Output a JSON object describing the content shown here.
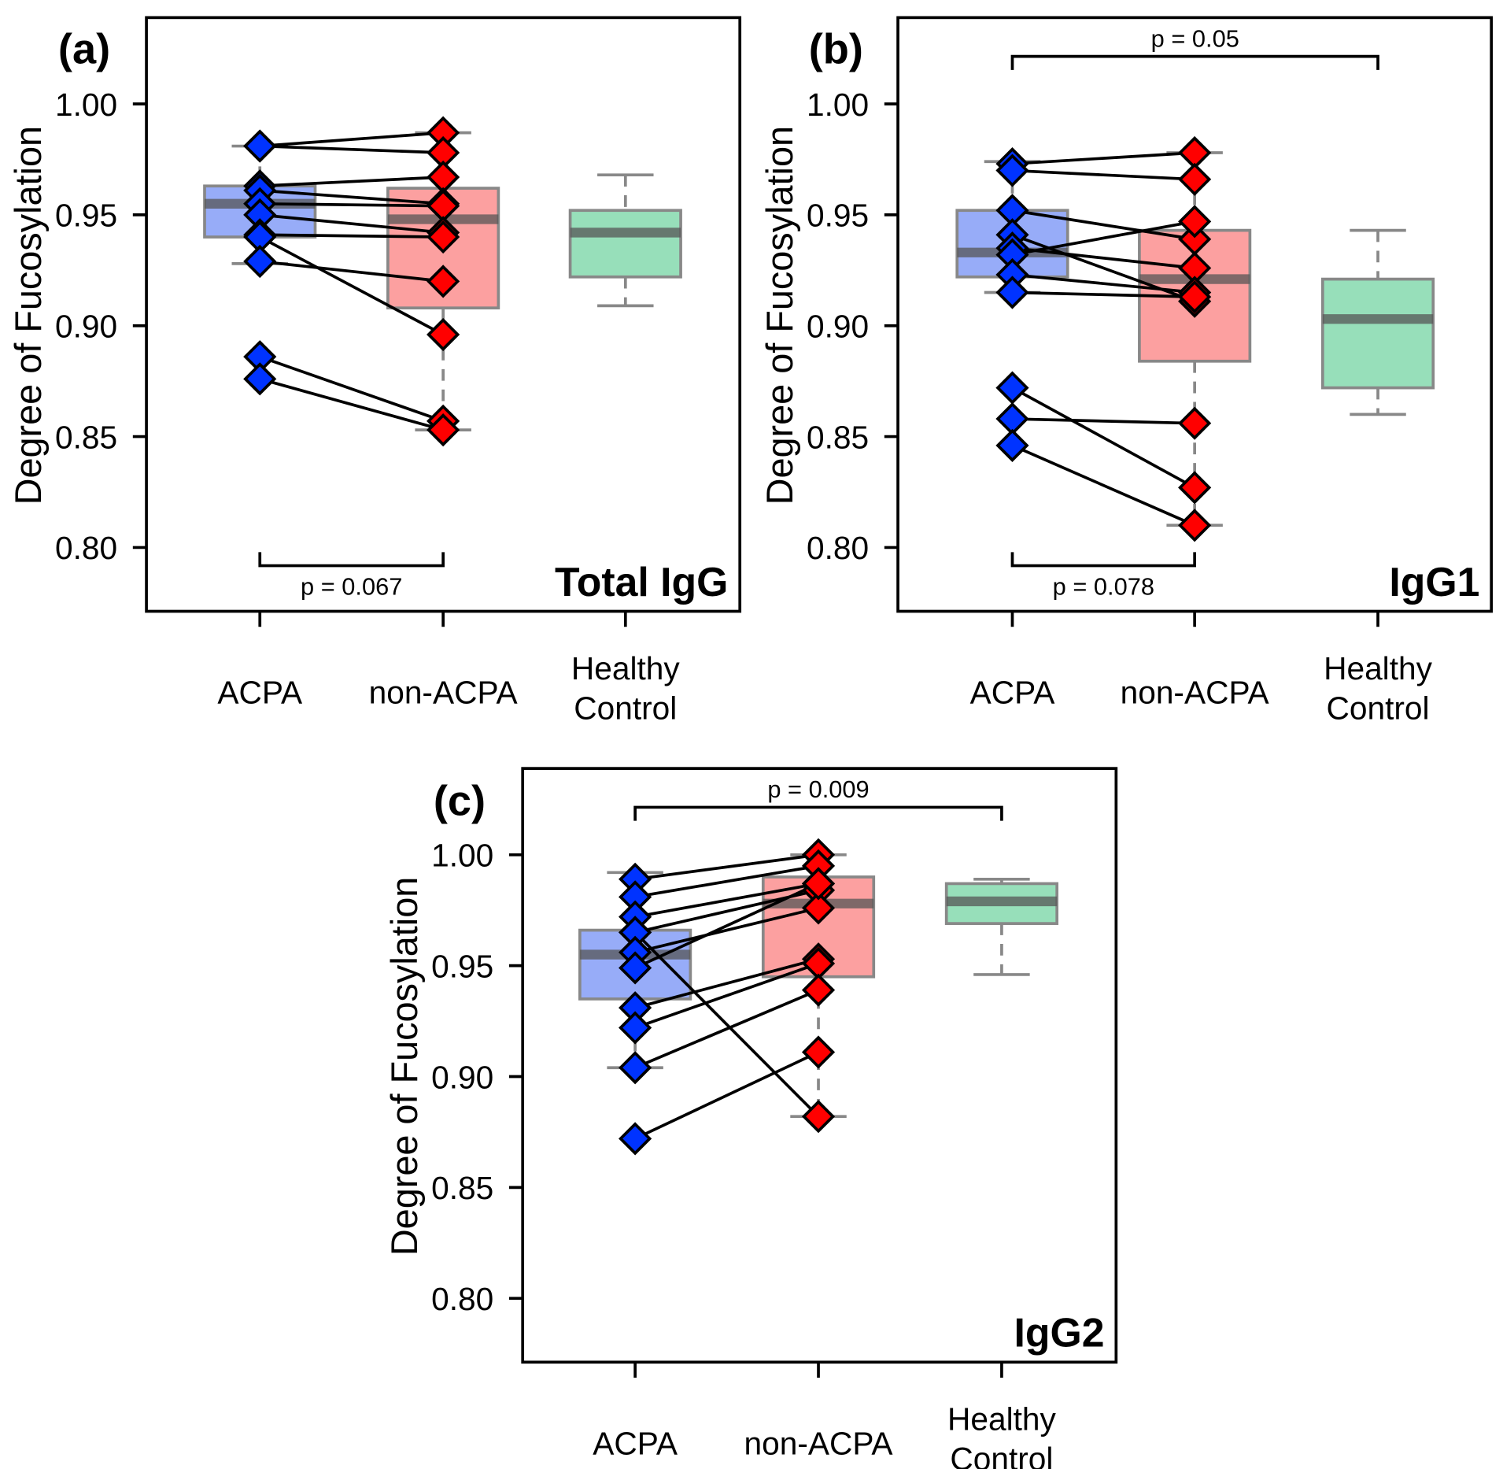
{
  "chart_data": [
    {
      "type": "box-paired",
      "panel_label": "(a)",
      "title": "Total IgG",
      "ylabel": "Degree of Fucosylation",
      "ylim": [
        0.775,
        1.04
      ],
      "yticks": [
        "0.80",
        "0.85",
        "0.90",
        "0.95",
        "1.00"
      ],
      "categories": [
        "ACPA",
        "non-ACPA",
        "Healthy\nControl"
      ],
      "boxes": [
        {
          "name": "ACPA",
          "q1": 0.94,
          "median": 0.955,
          "q3": 0.963,
          "whisker_low": 0.928,
          "whisker_high": 0.981,
          "color": "#6f8cf5"
        },
        {
          "name": "non-ACPA",
          "q1": 0.908,
          "median": 0.948,
          "q3": 0.962,
          "whisker_low": 0.853,
          "whisker_high": 0.987,
          "color": "#fb7b7b"
        },
        {
          "name": "Healthy Control",
          "q1": 0.922,
          "median": 0.942,
          "q3": 0.952,
          "whisker_low": 0.909,
          "whisker_high": 0.968,
          "color": "#6fd3a0"
        }
      ],
      "pairs": [
        [
          0.981,
          0.987
        ],
        [
          0.981,
          0.978
        ],
        [
          0.963,
          0.967
        ],
        [
          0.961,
          0.955
        ],
        [
          0.955,
          0.954
        ],
        [
          0.95,
          0.942
        ],
        [
          0.941,
          0.94
        ],
        [
          0.94,
          0.896
        ],
        [
          0.929,
          0.92
        ],
        [
          0.886,
          0.857
        ],
        [
          0.876,
          0.853
        ]
      ],
      "brackets": [
        {
          "from": 0,
          "to": 1,
          "position": "bottom",
          "label": "p = 0.067"
        }
      ]
    },
    {
      "type": "box-paired",
      "panel_label": "(b)",
      "title": "IgG1",
      "ylabel": "Degree of Fucosylation",
      "ylim": [
        0.775,
        1.04
      ],
      "yticks": [
        "0.80",
        "0.85",
        "0.90",
        "0.95",
        "1.00"
      ],
      "categories": [
        "ACPA",
        "non-ACPA",
        "Healthy\nControl"
      ],
      "boxes": [
        {
          "name": "ACPA",
          "q1": 0.922,
          "median": 0.933,
          "q3": 0.952,
          "whisker_low": 0.915,
          "whisker_high": 0.974,
          "color": "#6f8cf5"
        },
        {
          "name": "non-ACPA",
          "q1": 0.884,
          "median": 0.921,
          "q3": 0.943,
          "whisker_low": 0.81,
          "whisker_high": 0.978,
          "color": "#fb7b7b"
        },
        {
          "name": "Healthy Control",
          "q1": 0.872,
          "median": 0.903,
          "q3": 0.921,
          "whisker_low": 0.86,
          "whisker_high": 0.943,
          "color": "#6fd3a0"
        }
      ],
      "pairs": [
        [
          0.973,
          0.978
        ],
        [
          0.97,
          0.966
        ],
        [
          0.952,
          0.939
        ],
        [
          0.941,
          0.911
        ],
        [
          0.935,
          0.926
        ],
        [
          0.932,
          0.947
        ],
        [
          0.923,
          0.915
        ],
        [
          0.915,
          0.913
        ],
        [
          0.872,
          0.827
        ],
        [
          0.858,
          0.856
        ],
        [
          0.846,
          0.81
        ]
      ],
      "brackets": [
        {
          "from": 0,
          "to": 2,
          "position": "top",
          "label": "p = 0.05"
        },
        {
          "from": 0,
          "to": 1,
          "position": "bottom",
          "label": "p = 0.078"
        }
      ]
    },
    {
      "type": "box-paired",
      "panel_label": "(c)",
      "title": "IgG2",
      "ylabel": "Degree of Fucosylation",
      "ylim": [
        0.775,
        1.04
      ],
      "yticks": [
        "0.80",
        "0.85",
        "0.90",
        "0.95",
        "1.00"
      ],
      "categories": [
        "ACPA",
        "non-ACPA",
        "Healthy\nControl"
      ],
      "boxes": [
        {
          "name": "ACPA",
          "q1": 0.935,
          "median": 0.955,
          "q3": 0.966,
          "whisker_low": 0.904,
          "whisker_high": 0.992,
          "color": "#6f8cf5"
        },
        {
          "name": "non-ACPA",
          "q1": 0.945,
          "median": 0.978,
          "q3": 0.99,
          "whisker_low": 0.882,
          "whisker_high": 1.0,
          "color": "#fb7b7b"
        },
        {
          "name": "Healthy Control",
          "q1": 0.969,
          "median": 0.979,
          "q3": 0.987,
          "whisker_low": 0.946,
          "whisker_high": 0.989,
          "color": "#6fd3a0"
        }
      ],
      "pairs": [
        [
          0.989,
          1.0
        ],
        [
          0.981,
          0.995
        ],
        [
          0.972,
          0.987
        ],
        [
          0.965,
          0.984
        ],
        [
          0.965,
          0.882
        ],
        [
          0.956,
          0.976
        ],
        [
          0.949,
          0.987
        ],
        [
          0.931,
          0.953
        ],
        [
          0.922,
          0.951
        ],
        [
          0.904,
          0.939
        ],
        [
          0.872,
          0.911
        ]
      ],
      "brackets": [
        {
          "from": 0,
          "to": 2,
          "position": "top",
          "label": "p = 0.009"
        }
      ]
    }
  ],
  "colors": {
    "acpa_point": "#0033ff",
    "non_acpa_point": "#ff0000"
  }
}
